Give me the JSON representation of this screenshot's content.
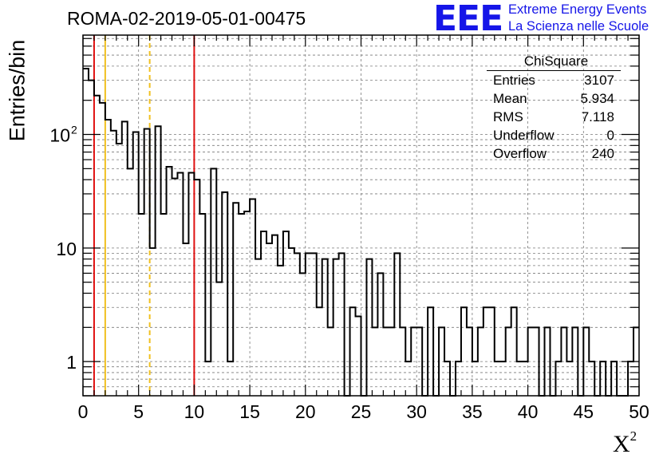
{
  "chart_data": {
    "type": "histogram",
    "title": "ROMA-02-2019-05-01-00475",
    "xlabel": "X",
    "xlabel_superscript": "2",
    "ylabel": "Entries/bin",
    "xlim": [
      0,
      50
    ],
    "ylim": [
      0.5,
      750
    ],
    "yscale": "log",
    "bin_width": 0.5,
    "grid": true,
    "x_ticks": [
      "0",
      "5",
      "10",
      "15",
      "20",
      "25",
      "30",
      "35",
      "40",
      "45",
      "50"
    ],
    "y_ticks": [
      {
        "value": 1,
        "label": "1"
      },
      {
        "value": 10,
        "label": "10"
      },
      {
        "value": 100,
        "label": "10",
        "sup": "2"
      }
    ],
    "values": [
      380,
      300,
      220,
      190,
      135,
      108,
      83,
      130,
      50,
      105,
      20,
      112,
      10,
      118,
      20,
      52,
      41,
      46,
      11,
      46,
      40,
      20,
      1,
      50,
      5,
      31,
      1,
      25,
      20,
      21,
      27,
      8,
      14,
      11,
      13,
      7,
      14,
      10,
      9,
      6,
      9,
      9,
      3,
      8,
      2,
      8,
      9,
      0.5,
      3,
      2.5,
      0.5,
      8,
      2,
      6,
      2,
      2,
      9,
      2,
      1,
      2,
      2,
      0.5,
      3,
      0.5,
      2,
      1,
      0.5,
      1,
      3,
      2,
      1,
      2,
      3,
      3,
      1,
      1,
      2,
      3,
      1,
      1,
      2,
      2,
      0.5,
      2,
      0.5,
      1,
      2,
      1,
      2,
      0.5,
      2,
      1,
      0.5,
      1,
      0.5,
      1,
      0.5,
      0.5,
      1,
      2
    ],
    "vertical_lines": [
      {
        "x": 1,
        "color": "#e01010",
        "style": "solid"
      },
      {
        "x": 2,
        "color": "#f0c020",
        "style": "solid"
      },
      {
        "x": 6,
        "color": "#f0c020",
        "style": "dashed"
      },
      {
        "x": 10,
        "color": "#e01010",
        "style": "solid"
      }
    ],
    "legend_position": "top-right"
  },
  "stats_box": {
    "title": "ChiSquare",
    "rows": [
      {
        "label": "Entries",
        "value": "3107"
      },
      {
        "label": "Mean",
        "value": "5.934"
      },
      {
        "label": "RMS",
        "value": "7.118"
      },
      {
        "label": "Underflow",
        "value": "0"
      },
      {
        "label": "Overflow",
        "value": "240"
      }
    ]
  },
  "logo": {
    "text": "EEE",
    "line1": "Extreme Energy Events",
    "line2": "La Scienza nelle Scuole",
    "color": "#1515e8"
  }
}
